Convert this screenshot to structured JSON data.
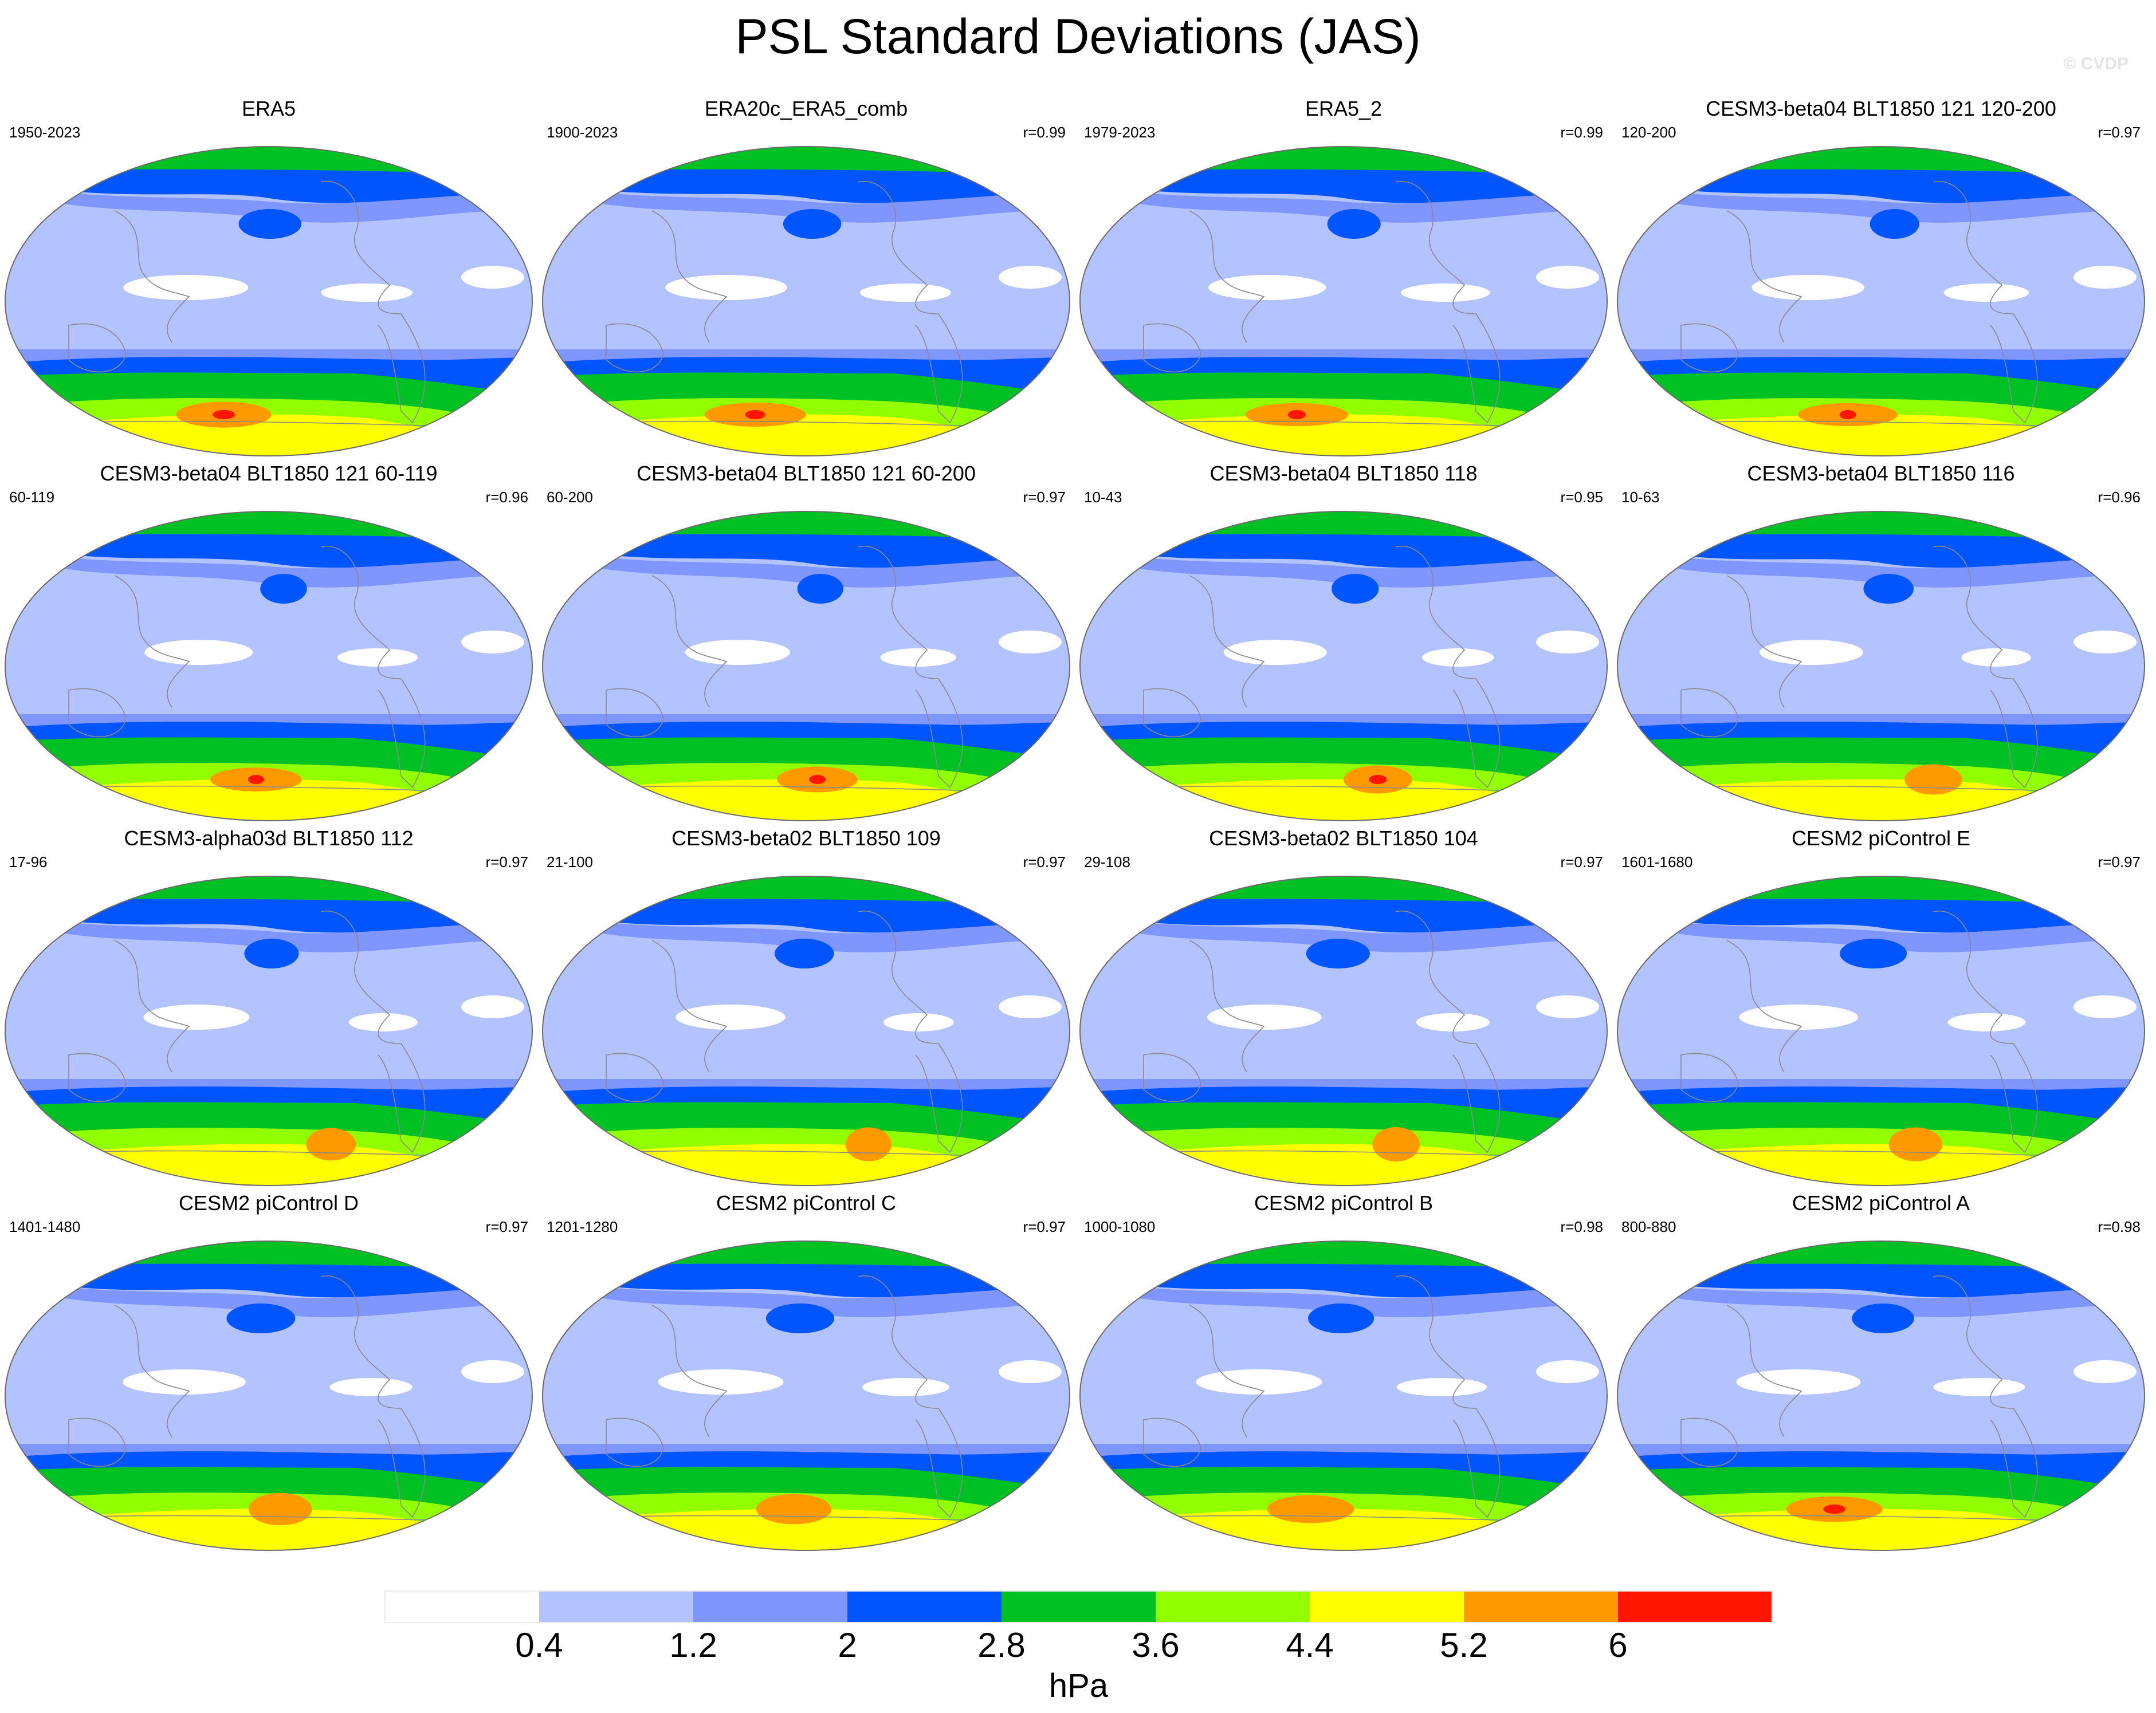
{
  "title": "PSL Standard Deviations (JAS)",
  "watermark": "© CVDP",
  "colorbar": {
    "unit": "hPa",
    "ticks": [
      "0.4",
      "1.2",
      "2",
      "2.8",
      "3.6",
      "4.4",
      "5.2",
      "6"
    ],
    "colors": [
      "#ffffff",
      "#b3c3ff",
      "#8096ff",
      "#0055ff",
      "#00c124",
      "#92ff00",
      "#ffff00",
      "#ff9900",
      "#ff1500"
    ]
  },
  "panels": [
    {
      "title": "ERA5",
      "years": "1950-2023",
      "corr": ""
    },
    {
      "title": "ERA20c_ERA5_comb",
      "years": "1900-2023",
      "corr": "r=0.99"
    },
    {
      "title": "ERA5_2",
      "years": "1979-2023",
      "corr": "r=0.99"
    },
    {
      "title": "CESM3-beta04 BLT1850 121 120-200",
      "years": "120-200",
      "corr": "r=0.97"
    },
    {
      "title": "CESM3-beta04 BLT1850 121 60-119",
      "years": "60-119",
      "corr": "r=0.96"
    },
    {
      "title": "CESM3-beta04 BLT1850 121 60-200",
      "years": "60-200",
      "corr": "r=0.97"
    },
    {
      "title": "CESM3-beta04 BLT1850 118",
      "years": "10-43",
      "corr": "r=0.95"
    },
    {
      "title": "CESM3-beta04 BLT1850 116",
      "years": "10-63",
      "corr": "r=0.96"
    },
    {
      "title": "CESM3-alpha03d BLT1850 112",
      "years": "17-96",
      "corr": "r=0.97"
    },
    {
      "title": "CESM3-beta02 BLT1850 109",
      "years": "21-100",
      "corr": "r=0.97"
    },
    {
      "title": "CESM3-beta02 BLT1850 104",
      "years": "29-108",
      "corr": "r=0.97"
    },
    {
      "title": "CESM2 piControl E",
      "years": "1601-1680",
      "corr": "r=0.97"
    },
    {
      "title": "CESM2 piControl D",
      "years": "1401-1480",
      "corr": "r=0.97"
    },
    {
      "title": "CESM2 piControl C",
      "years": "1201-1280",
      "corr": "r=0.97"
    },
    {
      "title": "CESM2 piControl B",
      "years": "1000-1080",
      "corr": "r=0.98"
    },
    {
      "title": "CESM2 piControl A",
      "years": "800-880",
      "corr": "r=0.98"
    }
  ],
  "chart_data": {
    "type": "heatmap",
    "title": "PSL Standard Deviations (JAS)",
    "layout": "4x4 grid of global maps",
    "contour_levels": [
      0.4,
      1.2,
      2,
      2.8,
      3.6,
      4.4,
      5.2,
      6
    ],
    "unit": "hPa",
    "panels": [
      {
        "name": "ERA5",
        "period": "1950-2023",
        "r": null
      },
      {
        "name": "ERA20c_ERA5_comb",
        "period": "1900-2023",
        "r": 0.99
      },
      {
        "name": "ERA5_2",
        "period": "1979-2023",
        "r": 0.99
      },
      {
        "name": "CESM3-beta04 BLT1850 121 120-200",
        "period": "120-200",
        "r": 0.97
      },
      {
        "name": "CESM3-beta04 BLT1850 121 60-119",
        "period": "60-119",
        "r": 0.96
      },
      {
        "name": "CESM3-beta04 BLT1850 121 60-200",
        "period": "60-200",
        "r": 0.97
      },
      {
        "name": "CESM3-beta04 BLT1850 118",
        "period": "10-43",
        "r": 0.95
      },
      {
        "name": "CESM3-beta04 BLT1850 116",
        "period": "10-63",
        "r": 0.96
      },
      {
        "name": "CESM3-alpha03d BLT1850 112",
        "period": "17-96",
        "r": 0.97
      },
      {
        "name": "CESM3-beta02 BLT1850 109",
        "period": "21-100",
        "r": 0.97
      },
      {
        "name": "CESM3-beta02 BLT1850 104",
        "period": "29-108",
        "r": 0.97
      },
      {
        "name": "CESM2 piControl E",
        "period": "1601-1680",
        "r": 0.97
      },
      {
        "name": "CESM2 piControl D",
        "period": "1401-1480",
        "r": 0.97
      },
      {
        "name": "CESM2 piControl C",
        "period": "1201-1280",
        "r": 0.97
      },
      {
        "name": "CESM2 piControl B",
        "period": "1000-1080",
        "r": 0.98
      },
      {
        "name": "CESM2 piControl A",
        "period": "800-880",
        "r": 0.98
      }
    ]
  }
}
